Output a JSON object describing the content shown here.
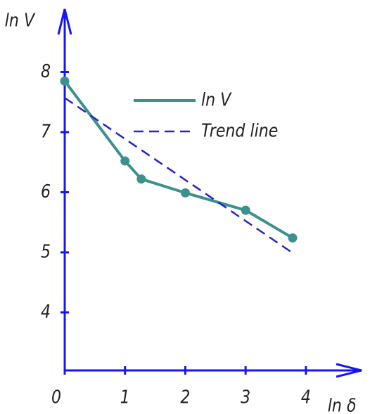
{
  "chart_data": {
    "type": "line",
    "y_label": "ln V",
    "x_label": "ln δ",
    "series": [
      {
        "name": "ln V",
        "color": "#3b918b",
        "x": [
          0,
          1,
          1.27,
          2,
          3,
          3.78
        ],
        "values": [
          7.85,
          6.52,
          6.22,
          5.99,
          5.7,
          5.24
        ],
        "line_style": "solid",
        "markers": true
      },
      {
        "name": "Trend line",
        "color": "#2525c8",
        "x": [
          0,
          3.78
        ],
        "values": [
          7.57,
          4.99
        ],
        "line_style": "dashed",
        "markers": false
      }
    ],
    "xlim": [
      0,
      4.9
    ],
    "ylim": [
      3,
      9
    ],
    "xticks": [
      0,
      1,
      2,
      3,
      4
    ],
    "yticks": [
      4,
      5,
      6,
      7,
      8
    ],
    "axis_color": "#1515f0",
    "grid": false
  }
}
